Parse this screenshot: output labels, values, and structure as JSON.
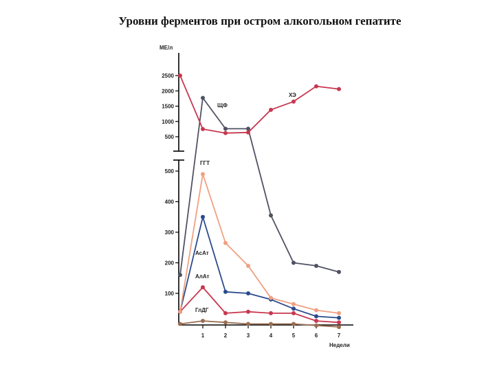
{
  "page_title": "Уровни ферментов при остром алкогольном гепатите",
  "chart_data": [
    {
      "type": "line",
      "ylabel": "МЕ/л",
      "xlabel": "Недели",
      "x": [
        0,
        1,
        2,
        3,
        4,
        5,
        6,
        7
      ],
      "x_tick_labels": [
        "1",
        "2",
        "3",
        "4",
        "5",
        "6",
        "7"
      ],
      "ylim": [
        0,
        2600
      ],
      "y_tick_labels": [
        "500",
        "1000",
        "1500",
        "2000",
        "2500"
      ],
      "y_ticks": [
        500,
        1000,
        1500,
        2000,
        2500
      ],
      "series": [
        {
          "name": "ХЭ",
          "color": "#c8374f",
          "values": [
            2500,
            750,
            620,
            640,
            1380,
            1650,
            2150,
            2060
          ]
        },
        {
          "name": "ЩФ",
          "color": "#4f5262",
          "values": [
            null,
            1770,
            760,
            760,
            null,
            null,
            null,
            null
          ]
        }
      ]
    },
    {
      "type": "line",
      "xlabel": "Недели",
      "x": [
        0,
        1,
        2,
        3,
        4,
        5,
        6,
        7
      ],
      "x_tick_labels": [
        "1",
        "2",
        "3",
        "4",
        "5",
        "6",
        "7"
      ],
      "ylim": [
        0,
        550
      ],
      "y_tick_labels": [
        "100",
        "200",
        "300",
        "400",
        "500"
      ],
      "y_ticks": [
        100,
        200,
        300,
        400,
        500
      ],
      "series": [
        {
          "name": "ЩФ",
          "color": "#4f5262",
          "values": [
            160,
            null,
            null,
            null,
            355,
            200,
            190,
            170
          ]
        },
        {
          "name": "ГГТ",
          "color": "#f0a080",
          "values": [
            40,
            490,
            265,
            190,
            85,
            65,
            45,
            35
          ]
        },
        {
          "name": "АсАт",
          "color": "#2a4a8c",
          "values": [
            40,
            350,
            105,
            100,
            80,
            50,
            25,
            20
          ]
        },
        {
          "name": "АлАт",
          "color": "#c8374f",
          "values": [
            40,
            120,
            35,
            40,
            35,
            35,
            10,
            5
          ]
        },
        {
          "name": "ГлДГ",
          "color": "#9a6e52",
          "values": [
            0,
            10,
            5,
            0,
            0,
            0,
            -5,
            -10
          ]
        }
      ]
    }
  ]
}
